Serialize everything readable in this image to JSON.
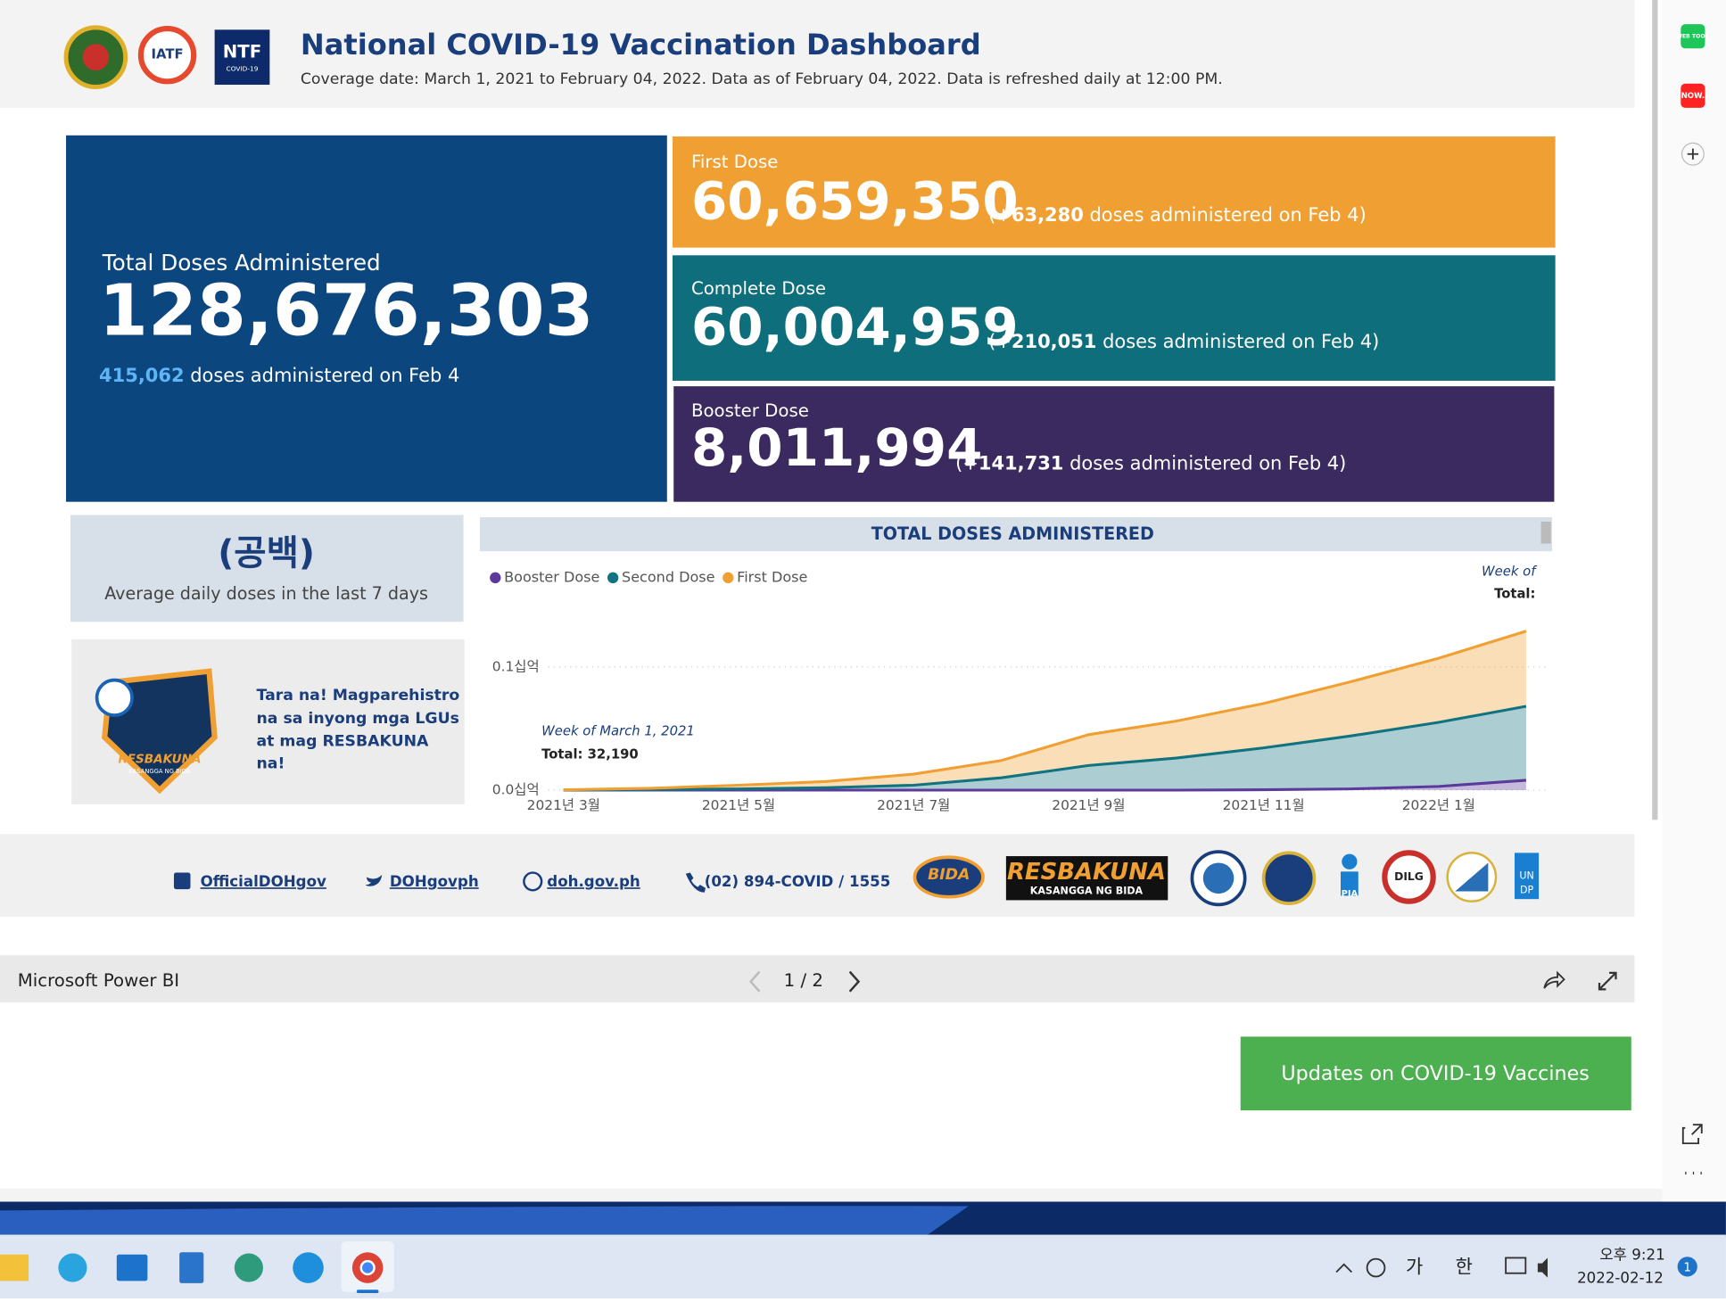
{
  "header": {
    "title": "National COVID-19 Vaccination Dashboard",
    "subtitle": "Coverage date: March 1, 2021 to February 04, 2022. Data as of February 04, 2022. Data is refreshed daily at 12:00 PM.",
    "logos": [
      "IATF",
      "NTF",
      "COVID-19"
    ]
  },
  "cards": {
    "total": {
      "label": "Total Doses Administered",
      "value": "128,676,303",
      "sub_value": "415,062",
      "sub_text": "doses administered on Feb 4"
    },
    "first": {
      "label": "First Dose",
      "value": "60,659,350",
      "delta_prefix": "(+",
      "delta": "63,280",
      "delta_text": "doses administered on Feb 4)"
    },
    "complete": {
      "label": "Complete Dose",
      "value": "60,004,959",
      "delta_prefix": "(+",
      "delta": "210,051",
      "delta_text": "doses administered on Feb 4)"
    },
    "booster": {
      "label": "Booster Dose",
      "value": "8,011,994",
      "delta_prefix": "(+",
      "delta": "141,731",
      "delta_text": "doses administered on Feb 4)"
    }
  },
  "average": {
    "value": "(공백)",
    "label": "Average daily doses in the last 7 days"
  },
  "promo": {
    "lines": [
      "Tara na! Magparehistro",
      "na sa inyong mga LGUs",
      "at mag RESBAKUNA",
      "na!"
    ],
    "badge": "RESBAKUNA",
    "badge_sub": "KASANGGA NG BIDA"
  },
  "chart_data": {
    "type": "area",
    "title": "TOTAL DOSES ADMINISTERED",
    "categories": [
      "2021년 3월",
      null,
      "2021년 5월",
      null,
      "2021년 7월",
      null,
      "2021년 9월",
      null,
      "2021년 11월",
      null,
      "2022년 1월",
      null
    ],
    "series": [
      {
        "name": "Booster Dose",
        "color": "#5b3a9c",
        "values": [
          0,
          0,
          0,
          0,
          0,
          0,
          0,
          0,
          0.0003,
          0.001,
          0.003,
          0.008
        ]
      },
      {
        "name": "Second Dose",
        "color": "#117380",
        "values": [
          0,
          0.0005,
          0.001,
          0.002,
          0.004,
          0.01,
          0.02,
          0.026,
          0.034,
          0.043,
          0.052,
          0.06
        ]
      },
      {
        "name": "First Dose",
        "color": "#f0a033",
        "values": [
          0.0003,
          0.001,
          0.003,
          0.005,
          0.009,
          0.014,
          0.025,
          0.03,
          0.036,
          0.044,
          0.052,
          0.061
        ]
      }
    ],
    "ylim": [
      0,
      0.15
    ],
    "yticks": [
      {
        "value": 0,
        "label": "0.0십억"
      },
      {
        "value": 0.1,
        "label": "0.1십억"
      }
    ],
    "grid": true,
    "stacked": true,
    "annotations": {
      "tooltip_week": "Week of March 1, 2021",
      "tooltip_total": "Total: 32,190",
      "corner_week": "Week of",
      "corner_total": "Total:"
    }
  },
  "footer": {
    "links": [
      "OfficialDOHgov",
      "DOHgovph",
      "doh.gov.ph",
      "(02) 894-COVID / 1555"
    ],
    "logos": [
      "BIDA",
      "RESBAKUNA",
      "KASANGGA NG BIDA",
      "PIA",
      "DILG",
      "UN",
      "DP"
    ]
  },
  "powerbi": {
    "brand": "Microsoft Power BI",
    "page": "1 / 2"
  },
  "button": "Updates on COVID-19 Vaccines",
  "sidebar": [
    "WEB TOON",
    "NOW."
  ],
  "taskbar": {
    "ime1": "가",
    "ime2": "한",
    "time": "오후 9:21",
    "date": "2022-02-12",
    "badge": "1"
  }
}
